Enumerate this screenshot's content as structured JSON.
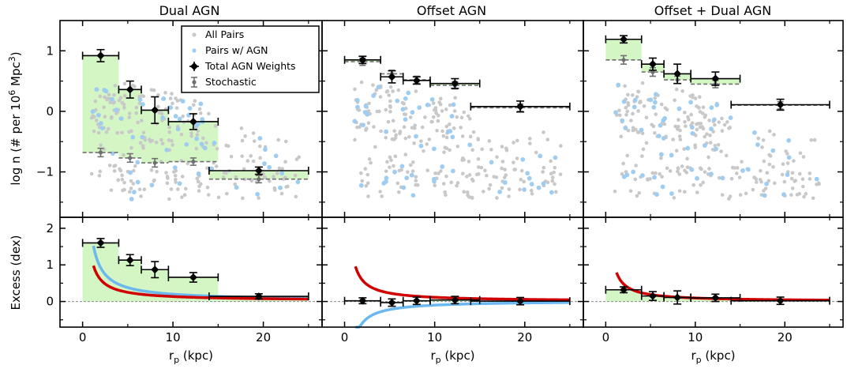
{
  "colors": {
    "all_pairs": "#c8c8c8",
    "pairs_agn": "#9fcdf2",
    "fill": "#d4f5c4",
    "blue_curve": "#6bb8f0",
    "red_curve": "#d00000",
    "stochastic": "#707070",
    "total": "#000000"
  },
  "legend": {
    "all_pairs": "All Pairs",
    "pairs_agn": "Pairs w/ AGN",
    "total": "Total AGN Weights",
    "stochastic": "Stochastic"
  },
  "chart_data": [
    {
      "type": "scatter",
      "title": "Dual AGN",
      "ylabel": "log n (# per 10^6 Mpc^3)",
      "xlim": [
        -2.5,
        26.5
      ],
      "ylim": [
        -1.75,
        1.5
      ],
      "total_weights": [
        {
          "x": 2,
          "xerr": 2,
          "y": 0.92,
          "yerr": 0.1
        },
        {
          "x": 5.25,
          "xerr": 1.25,
          "y": 0.36,
          "yerr": 0.14
        },
        {
          "x": 8,
          "xerr": 1.5,
          "y": 0.02,
          "yerr": 0.22
        },
        {
          "x": 12.25,
          "xerr": 2.75,
          "y": -0.17,
          "yerr": 0.13
        },
        {
          "x": 19.5,
          "xerr": 5.5,
          "y": -0.98,
          "yerr": 0.06
        }
      ],
      "stochastic": [
        {
          "x": 2,
          "y": -0.68,
          "yerr": 0.07
        },
        {
          "x": 5.25,
          "y": -0.77,
          "yerr": 0.07
        },
        {
          "x": 8,
          "y": -0.85,
          "yerr": 0.07
        },
        {
          "x": 12.25,
          "y": -0.83,
          "yerr": 0.06
        },
        {
          "x": 19.5,
          "y": -1.12,
          "yerr": 0.06
        }
      ],
      "excess_panel": {
        "ylabel": "Excess (dex)",
        "xlabel": "r_p (kpc)",
        "ylim": [
          -0.7,
          2.3
        ],
        "points": [
          {
            "x": 2,
            "xerr": 2,
            "y": 1.6,
            "yerr": 0.12
          },
          {
            "x": 5.25,
            "xerr": 1.25,
            "y": 1.13,
            "yerr": 0.15
          },
          {
            "x": 8,
            "xerr": 1.5,
            "y": 0.87,
            "yerr": 0.22
          },
          {
            "x": 12.25,
            "xerr": 2.75,
            "y": 0.66,
            "yerr": 0.13
          },
          {
            "x": 19.5,
            "xerr": 5.5,
            "y": 0.14,
            "yerr": 0.07
          }
        ],
        "blue_curve": {
          "A": 1.8,
          "B": 0.02,
          "x0": 1.2,
          "x1": 25
        },
        "red_curve": {
          "A": 1.15,
          "B": 0.02,
          "x0": 1.2,
          "x1": 25
        }
      }
    },
    {
      "type": "scatter",
      "title": "Offset AGN",
      "xlim": [
        -2.5,
        26.5
      ],
      "ylim": [
        -1.75,
        1.5
      ],
      "total_weights": [
        {
          "x": 2,
          "xerr": 2,
          "y": 0.85,
          "yerr": 0.06
        },
        {
          "x": 5.25,
          "xerr": 1.25,
          "y": 0.57,
          "yerr": 0.1
        },
        {
          "x": 8,
          "xerr": 1.5,
          "y": 0.51,
          "yerr": 0.06
        },
        {
          "x": 12.25,
          "xerr": 2.75,
          "y": 0.46,
          "yerr": 0.08
        },
        {
          "x": 19.5,
          "xerr": 5.5,
          "y": 0.08,
          "yerr": 0.09
        }
      ],
      "stochastic": [
        {
          "x": 2,
          "y": 0.82,
          "yerr": 0.06
        },
        {
          "x": 5.25,
          "y": 0.62,
          "yerr": 0.06
        },
        {
          "x": 8,
          "y": 0.52,
          "yerr": 0.06
        },
        {
          "x": 12.25,
          "y": 0.43,
          "yerr": 0.06
        },
        {
          "x": 19.5,
          "y": 0.06,
          "yerr": 0.06
        }
      ],
      "excess_panel": {
        "xlabel": "r_p (kpc)",
        "ylim": [
          -0.7,
          2.3
        ],
        "points": [
          {
            "x": 2,
            "xerr": 2,
            "y": 0.02,
            "yerr": 0.08
          },
          {
            "x": 5.25,
            "xerr": 1.25,
            "y": -0.03,
            "yerr": 0.1
          },
          {
            "x": 8,
            "xerr": 1.5,
            "y": 0.02,
            "yerr": 0.1
          },
          {
            "x": 12.25,
            "xerr": 2.75,
            "y": 0.04,
            "yerr": 0.1
          },
          {
            "x": 19.5,
            "xerr": 5.5,
            "y": 0.01,
            "yerr": 0.1
          }
        ],
        "blue_curve": {
          "A": -1.2,
          "B": 0.02,
          "x0": 1.2,
          "x1": 25
        },
        "red_curve": {
          "A": 1.15,
          "B": 0.0,
          "x0": 1.2,
          "x1": 25
        }
      }
    },
    {
      "type": "scatter",
      "title": "Offset + Dual AGN",
      "xlim": [
        -2.5,
        26.5
      ],
      "ylim": [
        -1.75,
        1.5
      ],
      "total_weights": [
        {
          "x": 2,
          "xerr": 2,
          "y": 1.19,
          "yerr": 0.06
        },
        {
          "x": 5.25,
          "xerr": 1.25,
          "y": 0.78,
          "yerr": 0.1
        },
        {
          "x": 8,
          "xerr": 1.5,
          "y": 0.62,
          "yerr": 0.16
        },
        {
          "x": 12.25,
          "xerr": 2.75,
          "y": 0.54,
          "yerr": 0.11
        },
        {
          "x": 19.5,
          "xerr": 5.5,
          "y": 0.11,
          "yerr": 0.09
        }
      ],
      "stochastic": [
        {
          "x": 2,
          "y": 0.85,
          "yerr": 0.07
        },
        {
          "x": 5.25,
          "y": 0.65,
          "yerr": 0.07
        },
        {
          "x": 8,
          "y": 0.52,
          "yerr": 0.06
        },
        {
          "x": 12.25,
          "y": 0.45,
          "yerr": 0.06
        },
        {
          "x": 19.5,
          "y": 0.1,
          "yerr": 0.06
        }
      ],
      "excess_panel": {
        "xlabel": "r_p (kpc)",
        "ylim": [
          -0.7,
          2.3
        ],
        "points": [
          {
            "x": 2,
            "xerr": 2,
            "y": 0.32,
            "yerr": 0.08
          },
          {
            "x": 5.25,
            "xerr": 1.25,
            "y": 0.15,
            "yerr": 0.12
          },
          {
            "x": 8,
            "xerr": 1.5,
            "y": 0.11,
            "yerr": 0.18
          },
          {
            "x": 12.25,
            "xerr": 2.75,
            "y": 0.1,
            "yerr": 0.1
          },
          {
            "x": 19.5,
            "xerr": 5.5,
            "y": 0.02,
            "yerr": 0.1
          }
        ],
        "red_curve": {
          "A": 0.95,
          "B": 0.0,
          "x0": 1.2,
          "x1": 25
        }
      }
    }
  ],
  "ticks": {
    "x": [
      0,
      10,
      20
    ],
    "y_main": [
      -1,
      0,
      1
    ],
    "y_excess": [
      0,
      1,
      2
    ]
  }
}
